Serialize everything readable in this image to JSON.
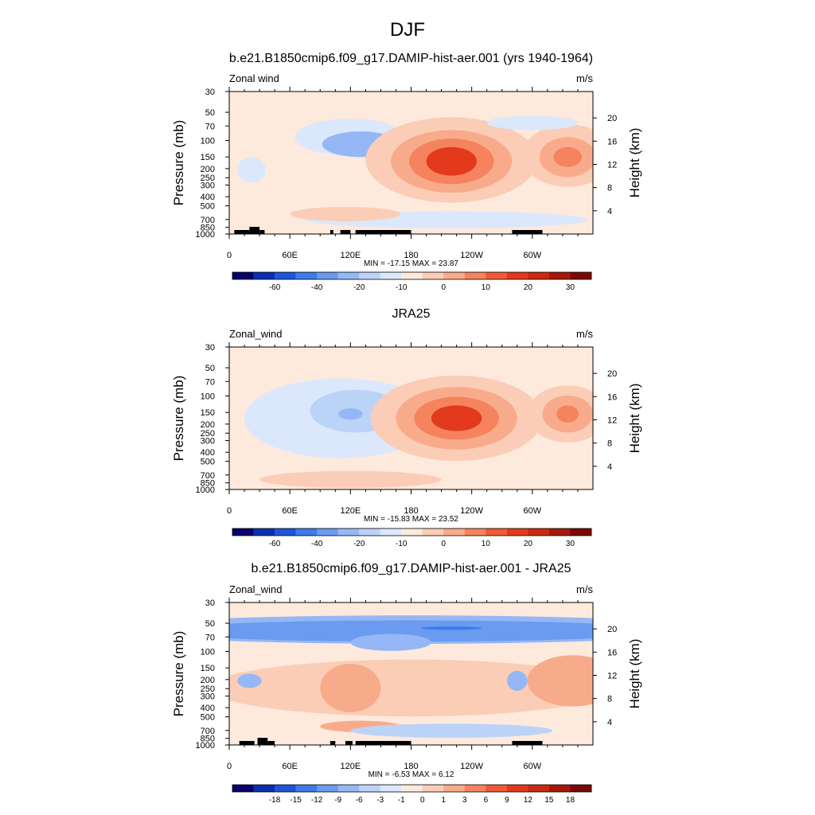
{
  "figure": {
    "title": "DJF",
    "colors": {
      "panel_bg": "#fdeadd",
      "land": "#000000"
    }
  },
  "chart_data": [
    {
      "type": "heatmap",
      "title": "b.e21.B1850cmip6.f09_g17.DAMIP-hist-aer.001 (yrs 1940-1964)",
      "left_label": "Zonal wind",
      "units": "m/s",
      "ylabel": "Pressure (mb)",
      "ylabel_right": "Height (km)",
      "pressure_ticks": [
        30,
        50,
        70,
        100,
        150,
        200,
        250,
        300,
        400,
        500,
        700,
        850,
        1000
      ],
      "height_ticks": [
        4,
        8,
        12,
        16,
        20
      ],
      "x_ticks": [
        "0",
        "60E",
        "120E",
        "180",
        "120W",
        "60W"
      ],
      "xlim": [
        0,
        360
      ],
      "ylim": [
        1000,
        30
      ],
      "stats": "MIN = -17.15  MAX =  23.87",
      "colorbar": {
        "labels": [
          "-60",
          "-40",
          "-20",
          "-10",
          "0",
          "10",
          "20",
          "30"
        ],
        "colors": [
          "#08006b",
          "#0c2fb0",
          "#1f55d9",
          "#3d7bea",
          "#6a9bf0",
          "#95b7f5",
          "#bcd3f8",
          "#dbe7fb",
          "#fdeadd",
          "#fbcdb6",
          "#f8ab8b",
          "#f5835e",
          "#f05a36",
          "#e3391d",
          "#c92a10",
          "#a5190a",
          "#7a0906"
        ],
        "label_positions": [
          1,
          3,
          5,
          7,
          9,
          11,
          13,
          15
        ]
      },
      "land": [
        [
          5,
          20
        ],
        [
          20,
          30
        ],
        [
          30,
          35
        ],
        [
          100,
          103
        ],
        [
          110,
          120
        ],
        [
          125,
          180
        ],
        [
          280,
          310
        ]
      ],
      "blobs": [
        {
          "x": 120,
          "y": 0.32,
          "rx": 55,
          "ry": 0.13,
          "value": -5
        },
        {
          "x": 130,
          "y": 0.37,
          "rx": 38,
          "ry": 0.09,
          "value": -12
        },
        {
          "x": 22,
          "y": 0.55,
          "rx": 14,
          "ry": 0.09,
          "value": -3
        },
        {
          "x": 220,
          "y": 0.48,
          "rx": 85,
          "ry": 0.3,
          "value": 5
        },
        {
          "x": 220,
          "y": 0.49,
          "rx": 60,
          "ry": 0.22,
          "value": 12
        },
        {
          "x": 220,
          "y": 0.49,
          "rx": 42,
          "ry": 0.16,
          "value": 18
        },
        {
          "x": 220,
          "y": 0.49,
          "rx": 25,
          "ry": 0.1,
          "value": 23
        },
        {
          "x": 335,
          "y": 0.45,
          "rx": 45,
          "ry": 0.22,
          "value": 6
        },
        {
          "x": 335,
          "y": 0.46,
          "rx": 28,
          "ry": 0.14,
          "value": 13
        },
        {
          "x": 335,
          "y": 0.46,
          "rx": 14,
          "ry": 0.07,
          "value": 19
        },
        {
          "x": 215,
          "y": 0.9,
          "rx": 140,
          "ry": 0.06,
          "value": -3
        },
        {
          "x": 115,
          "y": 0.86,
          "rx": 55,
          "ry": 0.05,
          "value": 3
        },
        {
          "x": 300,
          "y": 0.22,
          "rx": 45,
          "ry": 0.05,
          "value": -3
        }
      ]
    },
    {
      "type": "heatmap",
      "title": "JRA25",
      "left_label": "Zonal_wind",
      "units": "m/s",
      "ylabel": "Pressure (mb)",
      "ylabel_right": "Height (km)",
      "pressure_ticks": [
        30,
        50,
        70,
        100,
        150,
        200,
        250,
        300,
        400,
        500,
        700,
        850,
        1000
      ],
      "height_ticks": [
        4,
        8,
        12,
        16,
        20
      ],
      "x_ticks": [
        "0",
        "60E",
        "120E",
        "180",
        "120W",
        "60W"
      ],
      "xlim": [
        0,
        360
      ],
      "ylim": [
        1000,
        30
      ],
      "stats": "MIN = -15.83  MAX =  23.52",
      "colorbar": {
        "labels": [
          "-60",
          "-40",
          "-20",
          "-10",
          "0",
          "10",
          "20",
          "30"
        ],
        "colors": [
          "#08006b",
          "#0c2fb0",
          "#1f55d9",
          "#3d7bea",
          "#6a9bf0",
          "#95b7f5",
          "#bcd3f8",
          "#dbe7fb",
          "#fdeadd",
          "#fbcdb6",
          "#f8ab8b",
          "#f5835e",
          "#f05a36",
          "#e3391d",
          "#c92a10",
          "#a5190a",
          "#7a0906"
        ],
        "label_positions": [
          1,
          3,
          5,
          7,
          9,
          11,
          13,
          15
        ]
      },
      "land": [],
      "blobs": [
        {
          "x": 110,
          "y": 0.5,
          "rx": 95,
          "ry": 0.28,
          "value": -3
        },
        {
          "x": 125,
          "y": 0.45,
          "rx": 45,
          "ry": 0.15,
          "value": -7
        },
        {
          "x": 120,
          "y": 0.47,
          "rx": 12,
          "ry": 0.04,
          "value": -12
        },
        {
          "x": 225,
          "y": 0.5,
          "rx": 85,
          "ry": 0.3,
          "value": 5
        },
        {
          "x": 225,
          "y": 0.5,
          "rx": 60,
          "ry": 0.22,
          "value": 12
        },
        {
          "x": 225,
          "y": 0.5,
          "rx": 42,
          "ry": 0.15,
          "value": 18
        },
        {
          "x": 225,
          "y": 0.5,
          "rx": 25,
          "ry": 0.09,
          "value": 23
        },
        {
          "x": 335,
          "y": 0.47,
          "rx": 40,
          "ry": 0.2,
          "value": 6
        },
        {
          "x": 335,
          "y": 0.47,
          "rx": 25,
          "ry": 0.13,
          "value": 13
        },
        {
          "x": 335,
          "y": 0.47,
          "rx": 11,
          "ry": 0.06,
          "value": 19
        },
        {
          "x": 120,
          "y": 0.93,
          "rx": 90,
          "ry": 0.06,
          "value": 2
        }
      ]
    },
    {
      "type": "heatmap",
      "title": "b.e21.B1850cmip6.f09_g17.DAMIP-hist-aer.001 - JRA25",
      "left_label": "Zonal_wind",
      "units": "m/s",
      "ylabel": "Pressure (mb)",
      "ylabel_right": "Height (km)",
      "pressure_ticks": [
        30,
        50,
        70,
        100,
        150,
        200,
        250,
        300,
        400,
        500,
        700,
        850,
        1000
      ],
      "height_ticks": [
        4,
        8,
        12,
        16,
        20
      ],
      "x_ticks": [
        "0",
        "60E",
        "120E",
        "180",
        "120W",
        "60W"
      ],
      "xlim": [
        0,
        360
      ],
      "ylim": [
        1000,
        30
      ],
      "stats": "MIN =  -6.53  MAX =   6.12",
      "colorbar": {
        "labels": [
          "-18",
          "-15",
          "-12",
          "-9",
          "-6",
          "-3",
          "-1",
          "0",
          "1",
          "3",
          "6",
          "9",
          "12",
          "15",
          "18"
        ],
        "colors": [
          "#08006b",
          "#0c2fb0",
          "#1f55d9",
          "#3d7bea",
          "#6a9bf0",
          "#95b7f5",
          "#bcd3f8",
          "#dbe7fb",
          "#fdeadd",
          "#fbcdb6",
          "#f8ab8b",
          "#f5835e",
          "#f05a36",
          "#e3391d",
          "#c92a10",
          "#a5190a",
          "#7a0906"
        ],
        "label_positions": [
          1,
          2,
          3,
          4,
          5,
          6,
          7,
          8,
          9,
          10,
          11,
          12,
          13,
          14,
          15
        ]
      },
      "land": [
        [
          10,
          25
        ],
        [
          28,
          38
        ],
        [
          38,
          45
        ],
        [
          100,
          105
        ],
        [
          115,
          122
        ],
        [
          125,
          180
        ],
        [
          280,
          310
        ]
      ],
      "blobs": [
        {
          "x": 180,
          "y": 0.19,
          "rx": 300,
          "ry": 0.1,
          "value": -2
        },
        {
          "x": 180,
          "y": 0.2,
          "rx": 250,
          "ry": 0.075,
          "value": -4
        },
        {
          "x": 160,
          "y": 0.28,
          "rx": 40,
          "ry": 0.06,
          "value": -3
        },
        {
          "x": 220,
          "y": 0.18,
          "rx": 30,
          "ry": 0.012,
          "value": -7
        },
        {
          "x": 180,
          "y": 0.6,
          "rx": 200,
          "ry": 0.2,
          "value": 1.5
        },
        {
          "x": 120,
          "y": 0.6,
          "rx": 30,
          "ry": 0.17,
          "value": 3.5
        },
        {
          "x": 340,
          "y": 0.55,
          "rx": 45,
          "ry": 0.18,
          "value": 3.5
        },
        {
          "x": 20,
          "y": 0.55,
          "rx": 12,
          "ry": 0.05,
          "value": -3
        },
        {
          "x": 285,
          "y": 0.55,
          "rx": 10,
          "ry": 0.07,
          "value": -3
        },
        {
          "x": 130,
          "y": 0.87,
          "rx": 40,
          "ry": 0.04,
          "value": 3.5
        },
        {
          "x": 220,
          "y": 0.9,
          "rx": 100,
          "ry": 0.05,
          "value": -1.5
        }
      ]
    }
  ]
}
